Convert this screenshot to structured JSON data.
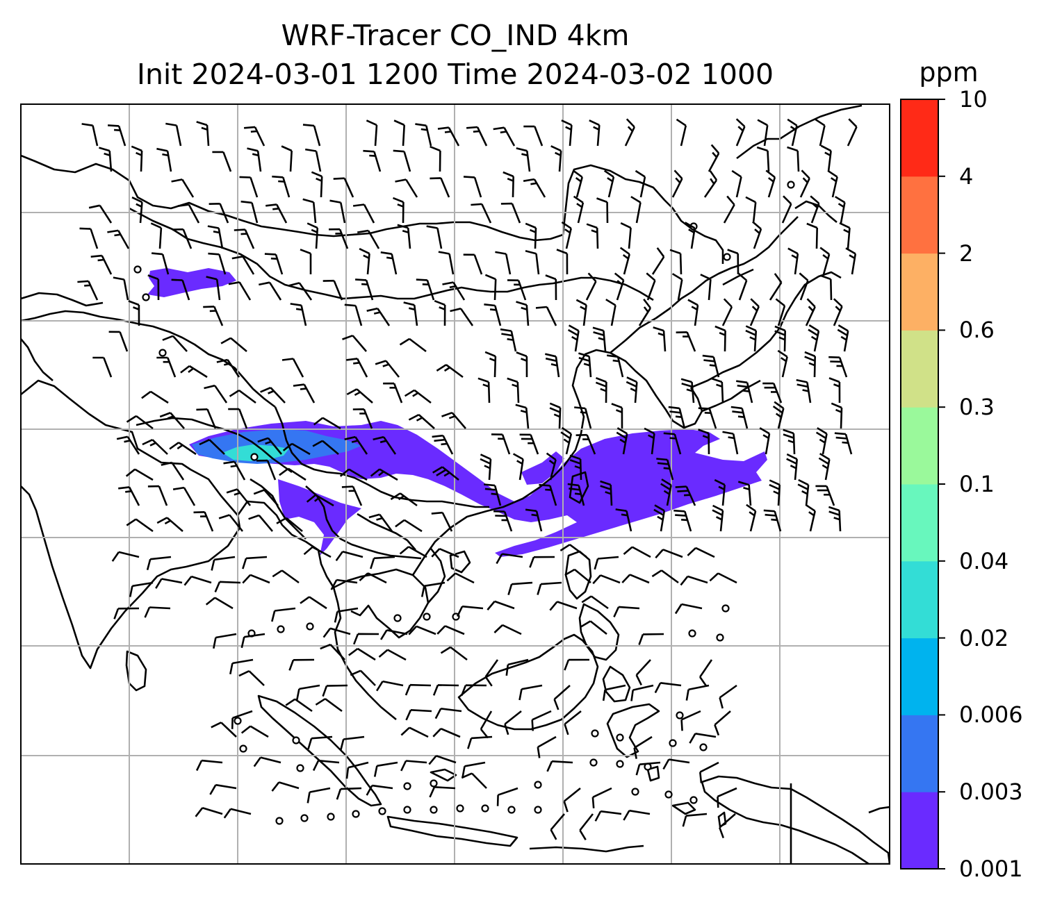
{
  "title": {
    "line1": "WRF-Tracer CO_IND 4km",
    "line2": "Init 2024-03-01 1200 Time 2024-03-02 1000"
  },
  "colorbar": {
    "unit": "ppm",
    "levels": [
      "0.001",
      "0.003",
      "0.006",
      "0.02",
      "0.04",
      "0.1",
      "0.3",
      "0.6",
      "2",
      "4",
      "10"
    ],
    "colors": [
      "#6a2bff",
      "#3576f2",
      "#00b3ee",
      "#33ddd6",
      "#68f7bd",
      "#9af99b",
      "#d0e188",
      "#fdb064",
      "#ff7140",
      "#ff2a17"
    ]
  },
  "map": {
    "outline_color": "#000000",
    "grid_color": "#b0b0b0",
    "plume_primary_color": "#6a2bff",
    "plume_secondary_color": "#3576f2",
    "plume_core_color": "#33ddd6",
    "wind_barb_color": "#000000",
    "calm_marker": "open-circle"
  }
}
